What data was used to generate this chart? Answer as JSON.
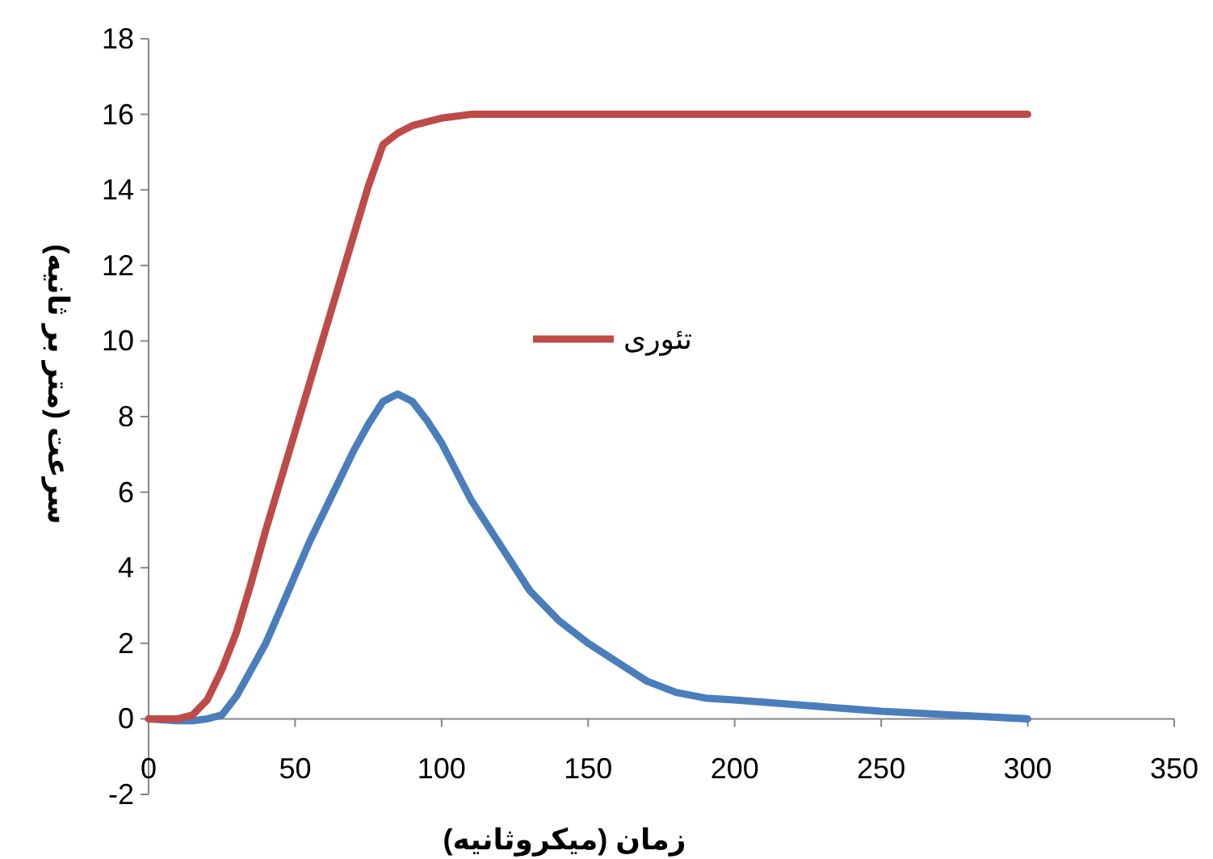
{
  "chart_data": {
    "type": "line",
    "xlabel": "زمان (میکروثانیه)",
    "ylabel": "سرعت (متر بر ثانیه)",
    "xlim": [
      0,
      350
    ],
    "ylim": [
      -2,
      18
    ],
    "xticks": [
      0,
      50,
      100,
      150,
      200,
      250,
      300,
      350
    ],
    "yticks": [
      -2,
      0,
      2,
      4,
      6,
      8,
      10,
      12,
      14,
      16,
      18
    ],
    "legend": "center",
    "series": [
      {
        "color": "#4a7ebb",
        "x": [
          0,
          10,
          15,
          20,
          25,
          30,
          35,
          40,
          45,
          50,
          55,
          60,
          65,
          70,
          75,
          80,
          85,
          90,
          95,
          100,
          110,
          120,
          130,
          140,
          150,
          160,
          170,
          180,
          190,
          200,
          225,
          250,
          275,
          300
        ],
        "values": [
          0,
          -0.05,
          -0.05,
          0,
          0.1,
          0.6,
          1.3,
          2.0,
          2.9,
          3.8,
          4.7,
          5.5,
          6.3,
          7.1,
          7.8,
          8.4,
          8.6,
          8.4,
          7.9,
          7.3,
          5.8,
          4.6,
          3.4,
          2.6,
          2.0,
          1.5,
          1.0,
          0.7,
          0.55,
          0.5,
          0.35,
          0.2,
          0.1,
          0.0
        ]
      },
      {
        "name": "تئوری",
        "color": "#be4b48",
        "x": [
          0,
          10,
          15,
          20,
          25,
          30,
          35,
          40,
          45,
          50,
          55,
          60,
          65,
          70,
          75,
          80,
          85,
          90,
          95,
          100,
          110,
          120,
          150,
          200,
          250,
          300
        ],
        "values": [
          0,
          0,
          0.1,
          0.5,
          1.3,
          2.3,
          3.6,
          5.0,
          6.3,
          7.6,
          8.9,
          10.2,
          11.5,
          12.8,
          14.1,
          15.2,
          15.5,
          15.7,
          15.8,
          15.9,
          16.0,
          16.0,
          16.0,
          16.0,
          16.0,
          16.0
        ]
      }
    ]
  }
}
